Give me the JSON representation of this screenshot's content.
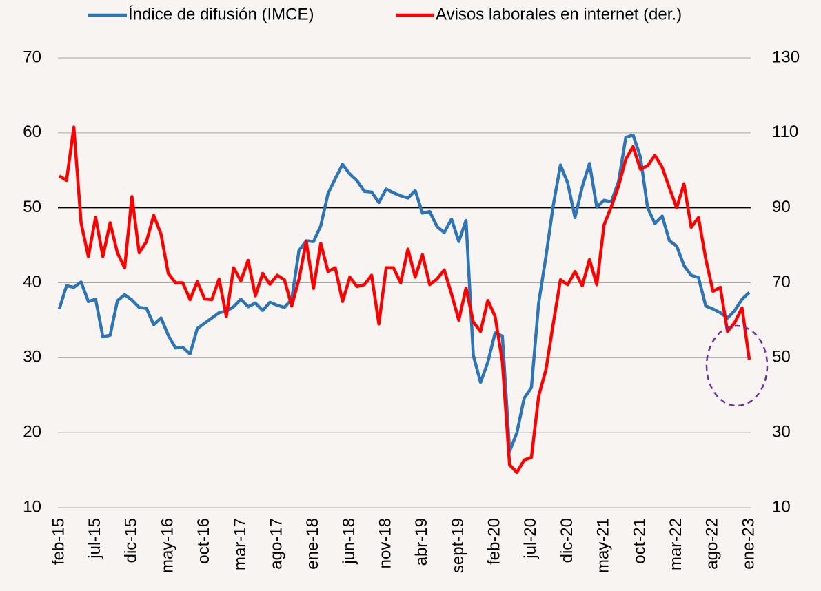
{
  "chart_data": {
    "type": "line",
    "categories": [
      "feb-15",
      null,
      null,
      null,
      null,
      "jul-15",
      null,
      null,
      null,
      null,
      "dic-15",
      null,
      null,
      null,
      null,
      "may-16",
      null,
      null,
      null,
      null,
      "oct-16",
      null,
      null,
      null,
      null,
      "mar-17",
      null,
      null,
      null,
      null,
      "ago-17",
      null,
      null,
      null,
      null,
      "ene-18",
      null,
      null,
      null,
      null,
      "jun-18",
      null,
      null,
      null,
      null,
      "nov-18",
      null,
      null,
      null,
      null,
      "abr-19",
      null,
      null,
      null,
      null,
      "sept-19",
      null,
      null,
      null,
      null,
      "feb-20",
      null,
      null,
      null,
      null,
      "jul-20",
      null,
      null,
      null,
      null,
      "dic-20",
      null,
      null,
      null,
      null,
      "may-21",
      null,
      null,
      null,
      null,
      "oct-21",
      null,
      null,
      null,
      null,
      "mar-22",
      null,
      null,
      null,
      null,
      "ago-22",
      null,
      null,
      null,
      null,
      "ene-23"
    ],
    "series": [
      {
        "name": "Índice de difusión (IMCE)",
        "color": "#2e75b6",
        "values": [
          36.5,
          39.6,
          39.4,
          40.1,
          37.5,
          37.8,
          32.8,
          33.0,
          37.6,
          38.4,
          37.7,
          36.7,
          36.6,
          34.4,
          35.3,
          33.0,
          31.3,
          31.4,
          30.5,
          33.9,
          34.6,
          35.3,
          36.0,
          36.2,
          36.8,
          37.8,
          36.8,
          37.3,
          36.3,
          37.4,
          37.0,
          36.7,
          37.8,
          44.3,
          45.6,
          45.5,
          47.6,
          51.9,
          53.9,
          55.8,
          54.5,
          53.6,
          52.2,
          52.1,
          50.7,
          52.5,
          52.0,
          51.6,
          51.3,
          52.3,
          49.3,
          49.5,
          47.5,
          46.7,
          48.5,
          45.5,
          48.3,
          30.3,
          26.7,
          29.4,
          33.3,
          32.9,
          17.5,
          20.0,
          24.6,
          26.0,
          37.3,
          43.5,
          50.3,
          55.7,
          53.3,
          48.7,
          52.8,
          55.9,
          50.1,
          51.0,
          50.8,
          53.5,
          59.4,
          59.7,
          56.8,
          50.0,
          47.9,
          48.9,
          45.6,
          44.9,
          42.3,
          41.0,
          40.7,
          36.9,
          36.5,
          36.0,
          35.3,
          36.3,
          37.8,
          38.7
        ]
      },
      {
        "name": "Avisos laborales en internet (der.)",
        "color": "#ff0000",
        "axis": "y2",
        "values": [
          98.5,
          97.3,
          111.5,
          86.0,
          77.0,
          87.5,
          77.0,
          86.0,
          78.0,
          74.0,
          93.0,
          78.0,
          81.0,
          88.0,
          83.0,
          72.5,
          70.0,
          70.0,
          65.5,
          70.3,
          65.7,
          65.5,
          71.0,
          61.0,
          74.0,
          70.5,
          76.0,
          66.5,
          72.5,
          69.6,
          72.0,
          70.8,
          63.8,
          71.0,
          81.0,
          68.5,
          80.5,
          73.0,
          74.0,
          65.0,
          71.5,
          69.0,
          69.5,
          72.0,
          59.0,
          74.0,
          74.0,
          70.0,
          79.0,
          71.5,
          77.5,
          69.5,
          71.0,
          73.4,
          67.0,
          60.0,
          68.6,
          59.5,
          57.0,
          65.3,
          61.0,
          49.0,
          21.4,
          19.4,
          22.7,
          23.4,
          39.8,
          46.8,
          59.0,
          70.8,
          69.5,
          73.0,
          69.2,
          76.2,
          69.5,
          85.4,
          90.3,
          95.8,
          103.0,
          106.3,
          100.3,
          101.2,
          104.0,
          100.8,
          95.3,
          90.0,
          96.4,
          84.8,
          87.4,
          76.4,
          67.7,
          68.8,
          57.0,
          59.4,
          63.3,
          49.5
        ]
      }
    ],
    "ylim": [
      10,
      70
    ],
    "yticks": [
      10,
      20,
      30,
      40,
      50,
      60,
      70
    ],
    "y2lim": [
      10,
      130
    ],
    "y2ticks": [
      10,
      30,
      50,
      70,
      90,
      110,
      130
    ],
    "grid": true,
    "hlines": [
      50
    ],
    "legend": "top"
  }
}
